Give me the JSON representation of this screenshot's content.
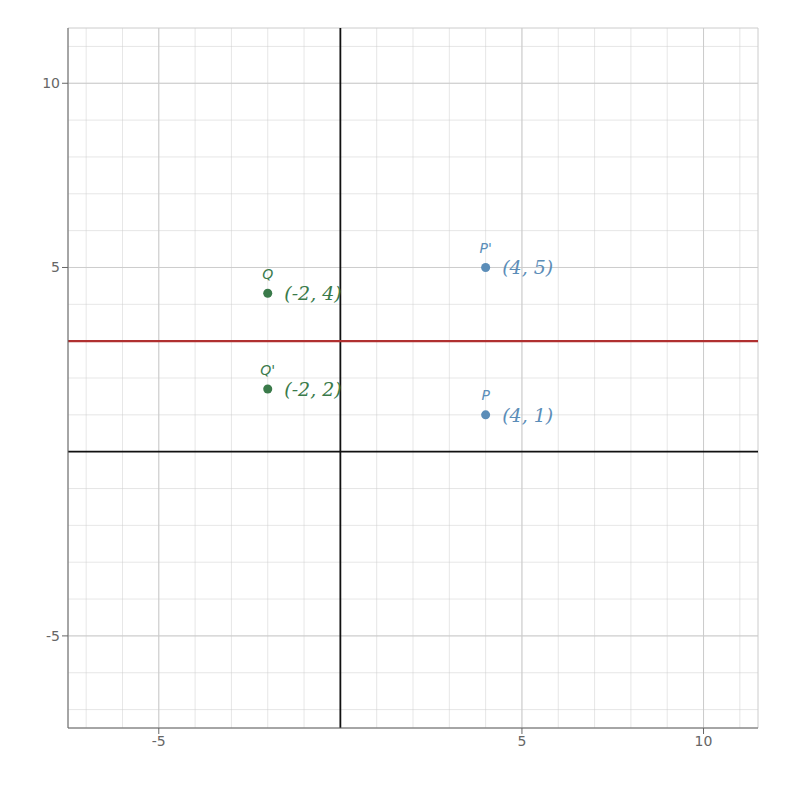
{
  "chart_data": {
    "type": "scatter",
    "xlim": [
      -7.5,
      11.5
    ],
    "ylim": [
      -7.5,
      11.5
    ],
    "xticks": [
      -5,
      5,
      10
    ],
    "yticks": [
      -5,
      5,
      10
    ],
    "minor_xticks": [
      -7,
      -6,
      -5,
      -4,
      -3,
      -2,
      -1,
      0,
      1,
      2,
      3,
      4,
      5,
      6,
      7,
      8,
      9,
      10,
      11
    ],
    "minor_yticks": [
      -7,
      -6,
      -5,
      -4,
      -3,
      -2,
      -1,
      0,
      1,
      2,
      3,
      4,
      5,
      6,
      7,
      8,
      9,
      10,
      11
    ],
    "grid": true,
    "axis_color": "#111111",
    "lines": [
      {
        "y": 3,
        "color": "#b03030"
      }
    ],
    "series": [
      {
        "color": "#5b8db8",
        "x": [
          4,
          4
        ],
        "values": [
          1,
          5
        ],
        "labels": [
          "P",
          "P'"
        ],
        "value_labels": [
          "(4, 1)",
          "(4, 5)"
        ]
      },
      {
        "color": "#3a7a4a",
        "x": [
          -2,
          -2
        ],
        "values": [
          4.3,
          1.7
        ],
        "labels": [
          "Q",
          "Q'"
        ],
        "value_labels": [
          "(-2, 4)",
          "(-2, 2)"
        ]
      }
    ]
  }
}
